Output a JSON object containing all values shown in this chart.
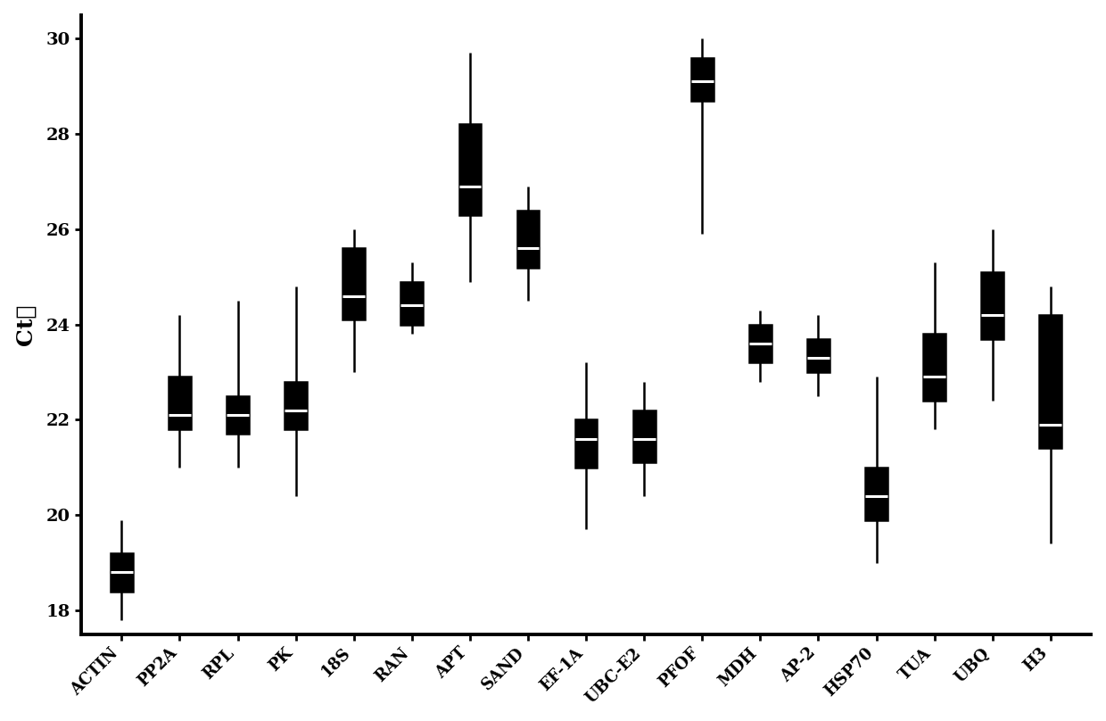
{
  "categories": [
    "ACTIN",
    "PP2A",
    "RPL",
    "PK",
    "18S",
    "RAN",
    "APT",
    "SAND",
    "EF-1A",
    "UBC-E2",
    "PFOF",
    "MDH",
    "AP-2",
    "HSP70",
    "TUA",
    "UBQ",
    "H3"
  ],
  "boxes": [
    {
      "whislo": 17.8,
      "q1": 18.4,
      "med": 18.8,
      "q3": 19.2,
      "whishi": 19.9
    },
    {
      "whislo": 21.0,
      "q1": 21.8,
      "med": 22.1,
      "q3": 22.9,
      "whishi": 24.2
    },
    {
      "whislo": 21.0,
      "q1": 21.7,
      "med": 22.1,
      "q3": 22.5,
      "whishi": 24.5
    },
    {
      "whislo": 20.4,
      "q1": 21.8,
      "med": 22.2,
      "q3": 22.8,
      "whishi": 24.8
    },
    {
      "whislo": 23.0,
      "q1": 24.1,
      "med": 24.6,
      "q3": 25.6,
      "whishi": 26.0
    },
    {
      "whislo": 23.8,
      "q1": 24.0,
      "med": 24.4,
      "q3": 24.9,
      "whishi": 25.3
    },
    {
      "whislo": 24.9,
      "q1": 26.3,
      "med": 26.9,
      "q3": 28.2,
      "whishi": 29.7
    },
    {
      "whislo": 24.5,
      "q1": 25.2,
      "med": 25.6,
      "q3": 26.4,
      "whishi": 26.9
    },
    {
      "whislo": 19.7,
      "q1": 21.0,
      "med": 21.6,
      "q3": 22.0,
      "whishi": 23.2
    },
    {
      "whislo": 20.4,
      "q1": 21.1,
      "med": 21.6,
      "q3": 22.2,
      "whishi": 22.8
    },
    {
      "whislo": 25.9,
      "q1": 28.7,
      "med": 29.1,
      "q3": 29.6,
      "whishi": 30.0
    },
    {
      "whislo": 22.8,
      "q1": 23.2,
      "med": 23.6,
      "q3": 24.0,
      "whishi": 24.3
    },
    {
      "whislo": 22.5,
      "q1": 23.0,
      "med": 23.3,
      "q3": 23.7,
      "whishi": 24.2
    },
    {
      "whislo": 19.0,
      "q1": 19.9,
      "med": 20.4,
      "q3": 21.0,
      "whishi": 22.9
    },
    {
      "whislo": 21.8,
      "q1": 22.4,
      "med": 22.9,
      "q3": 23.8,
      "whishi": 25.3
    },
    {
      "whislo": 22.4,
      "q1": 23.7,
      "med": 24.2,
      "q3": 25.1,
      "whishi": 26.0
    },
    {
      "whislo": 19.4,
      "q1": 21.4,
      "med": 21.9,
      "q3": 24.2,
      "whishi": 24.8
    }
  ],
  "ylabel": "Ct值",
  "ylim": [
    17.5,
    30.5
  ],
  "yticks": [
    18,
    20,
    22,
    24,
    26,
    28,
    30
  ],
  "box_color": "black",
  "median_color": "white",
  "whisker_color": "black",
  "face_color": "black",
  "background_color": "white",
  "ylabel_fontsize": 18,
  "tick_fontsize": 13,
  "xlabel_rotation": 45,
  "box_width": 0.38,
  "linewidth": 1.8
}
